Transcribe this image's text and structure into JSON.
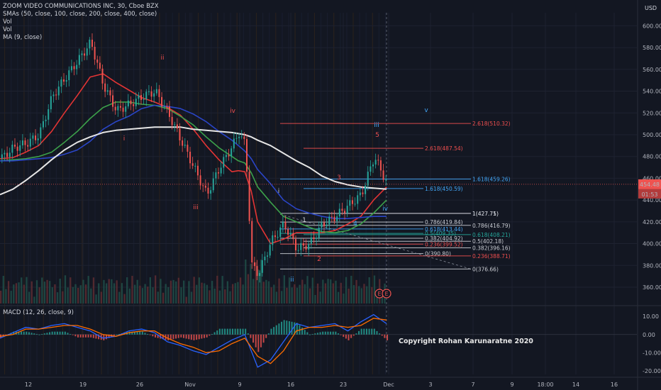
{
  "legend": {
    "title": "ZOOM VIDEO COMMUNICATIONS INC, 30, Cboe BZX",
    "lines": [
      "SMAs (50, close, 100, close, 200, close, 400, close)",
      "Vol",
      "Vol",
      "MA (9, close)"
    ]
  },
  "currency": "USD",
  "copyright": "Copyright Rohan Karunaratne 2020",
  "macd_label": "MACD (12, 26, close, 9)",
  "last_price": "454.48",
  "countdown": "01:53",
  "colors": {
    "background": "#131722",
    "sma50": "#e33434",
    "sma100": "#3ca04a",
    "sma200": "#2a45c7",
    "sma400": "#e6e6e6",
    "fib_red": "#ef4f4f",
    "fib_blue": "#42a5f5",
    "fib_white": "#c9ccd3"
  },
  "chart_data": [
    {
      "type": "line",
      "name": "price",
      "x_ticks": [
        "12",
        "19",
        "26",
        "Nov",
        "9",
        "16",
        "23",
        "Dec",
        "3",
        "7",
        "9",
        "18:00",
        "14",
        "16"
      ],
      "y_ticks": [
        360,
        380,
        400,
        420,
        440,
        460,
        480,
        500,
        520,
        540,
        560,
        580,
        600
      ],
      "ylim": [
        345,
        612
      ],
      "x_index": [
        0,
        10,
        20,
        30,
        40,
        50,
        60,
        70,
        80,
        90,
        100,
        110,
        120,
        130,
        140,
        150,
        160,
        170,
        180,
        185,
        190,
        195,
        200,
        210,
        220,
        230,
        240,
        250,
        260,
        270,
        280,
        290,
        300
      ],
      "close": [
        478,
        488,
        492,
        500,
        535,
        552,
        568,
        585,
        545,
        522,
        528,
        535,
        540,
        520,
        495,
        470,
        445,
        470,
        490,
        502,
        490,
        380,
        372,
        402,
        418,
        395,
        400,
        418,
        425,
        435,
        445,
        480,
        455
      ],
      "moving_averages": [
        {
          "name": "SMA 50",
          "values": [
            478,
            479,
            484,
            490,
            503,
            520,
            536,
            553,
            556,
            548,
            541,
            534,
            530,
            525,
            518,
            505,
            490,
            477,
            466,
            467,
            466,
            448,
            420,
            400,
            404,
            410,
            410,
            410,
            412,
            418,
            425,
            440,
            452
          ]
        },
        {
          "name": "SMA 100",
          "values": [
            476,
            477,
            478,
            480,
            484,
            493,
            503,
            515,
            525,
            530,
            530,
            528,
            527,
            524,
            517,
            509,
            498,
            488,
            480,
            476,
            474,
            465,
            452,
            438,
            425,
            420,
            415,
            411,
            410,
            412,
            418,
            428,
            440
          ]
        },
        {
          "name": "SMA 200",
          "values": [
            476,
            476,
            477,
            478,
            479,
            482,
            486,
            494,
            505,
            512,
            517,
            524,
            527,
            526,
            524,
            519,
            512,
            503,
            495,
            490,
            485,
            478,
            468,
            455,
            440,
            432,
            428,
            425,
            423,
            423,
            424,
            425,
            425
          ]
        },
        {
          "name": "SMA 400",
          "values": [
            445,
            450,
            458,
            467,
            477,
            486,
            493,
            498,
            502,
            504,
            505,
            506,
            507,
            507,
            507,
            505,
            504,
            503,
            502,
            501,
            500,
            498,
            495,
            490,
            483,
            476,
            470,
            462,
            457,
            454,
            452,
            451,
            450
          ]
        }
      ],
      "wave_labels": [
        {
          "label": "i",
          "color": "#ef4f4f"
        },
        {
          "label": "ii",
          "color": "#ef4f4f"
        },
        {
          "label": "iii",
          "color": "#ef4f4f"
        },
        {
          "label": "iv",
          "color": "#ef4f4f"
        },
        {
          "label": "i",
          "color": "#d1d4dc"
        },
        {
          "label": "ii",
          "color": "#42a5f5"
        },
        {
          "label": "iii",
          "color": "#42a5f5"
        },
        {
          "label": "iv",
          "color": "#42a5f5"
        },
        {
          "label": "v",
          "color": "#42a5f5"
        },
        {
          "label": "1",
          "color": "#d1d4dc"
        },
        {
          "label": "2",
          "color": "#ef4f4f"
        },
        {
          "label": "3",
          "color": "#ef4f4f"
        },
        {
          "label": "4",
          "color": "#42a5f5"
        },
        {
          "label": "5",
          "color": "#ef4f4f"
        }
      ],
      "fib_levels": [
        {
          "label": "2.618(510.32)",
          "value": 510.32,
          "color": "#ef4f4f"
        },
        {
          "label": "2.618(487.54)",
          "value": 487.54,
          "color": "#ef4f4f"
        },
        {
          "label": "1.618(459.26)",
          "value": 459.26,
          "color": "#42a5f5"
        },
        {
          "label": "1.618(450.59)",
          "value": 450.59,
          "color": "#42a5f5"
        },
        {
          "label": "1(427.75)",
          "value": 427.75,
          "color": "#c9ccd3"
        },
        {
          "label": "1(427.71)",
          "value": 427.71,
          "color": "#c9ccd3"
        },
        {
          "label": "0.786(419.84)",
          "value": 419.84,
          "color": "#c9ccd3"
        },
        {
          "label": "0.786(416.79)",
          "value": 416.79,
          "color": "#c9ccd3"
        },
        {
          "label": "0.618(413.44)",
          "value": 413.44,
          "color": "#42a5f5"
        },
        {
          "label": "0.618(408.21)",
          "value": 408.21,
          "color": "#26a69a"
        },
        {
          "label": "0.5(409.35)",
          "value": 409.35,
          "color": "#26a69a"
        },
        {
          "label": "0.382(404.92)",
          "value": 404.92,
          "color": "#c9ccd3"
        },
        {
          "label": "0.5(402.18)",
          "value": 402.18,
          "color": "#c9ccd3"
        },
        {
          "label": "0.236(399.52)",
          "value": 399.52,
          "color": "#ef4f4f"
        },
        {
          "label": "0.382(396.16)",
          "value": 396.16,
          "color": "#c9ccd3"
        },
        {
          "label": "0(390.80)",
          "value": 390.8,
          "color": "#c9ccd3"
        },
        {
          "label": "0.236(388.71)",
          "value": 388.71,
          "color": "#ef4f4f"
        },
        {
          "label": "0(376.66)",
          "value": 376.66,
          "color": "#c9ccd3"
        }
      ],
      "earnings_markers": [
        "E",
        "E"
      ]
    },
    {
      "type": "line",
      "name": "MACD (12, 26, close, 9)",
      "y_ticks": [
        10,
        0,
        -10,
        -20
      ],
      "ylim": [
        -22,
        14
      ],
      "x_index": [
        0,
        10,
        20,
        30,
        40,
        50,
        60,
        70,
        80,
        90,
        100,
        110,
        120,
        130,
        140,
        150,
        160,
        170,
        180,
        190,
        200,
        210,
        220,
        230,
        240,
        250,
        260,
        270,
        280,
        290,
        300
      ],
      "series": [
        {
          "name": "MACD",
          "values": [
            -2,
            1,
            4,
            3,
            5,
            6,
            4,
            2,
            -2,
            -1,
            2,
            3,
            1,
            -4,
            -6,
            -9,
            -11,
            -7,
            -3,
            0,
            -18,
            -14,
            -4,
            6,
            4,
            5,
            6,
            2,
            7,
            11,
            6
          ]
        },
        {
          "name": "Signal",
          "values": [
            -1,
            0,
            3,
            3,
            4,
            5,
            5,
            3,
            0,
            -1,
            1,
            2,
            2,
            -2,
            -5,
            -7,
            -10,
            -9,
            -5,
            -2,
            -12,
            -16,
            -9,
            2,
            4,
            4,
            5,
            4,
            5,
            9,
            8
          ]
        }
      ]
    }
  ]
}
